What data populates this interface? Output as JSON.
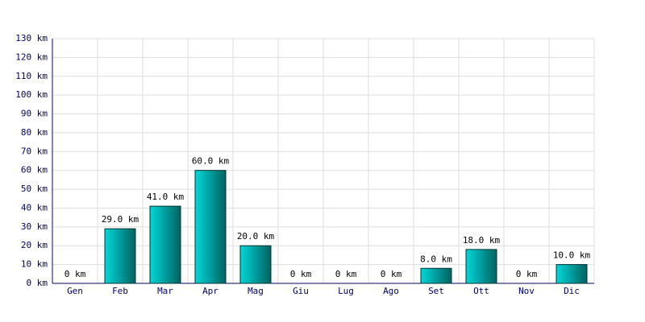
{
  "chart_data": {
    "type": "bar",
    "categories": [
      "Gen",
      "Feb",
      "Mar",
      "Apr",
      "Mag",
      "Giu",
      "Lug",
      "Ago",
      "Set",
      "Ott",
      "Nov",
      "Dic"
    ],
    "values": [
      0,
      29,
      41,
      60,
      20,
      0,
      0,
      0,
      8,
      18,
      0,
      10
    ],
    "value_labels": [
      "0 km",
      "29.0 km",
      "41.0 km",
      "60.0 km",
      "20.0 km",
      "0 km",
      "0 km",
      "0 km",
      "8.0 km",
      "18.0 km",
      "0 km",
      "10.0 km"
    ],
    "color": "#00d8d8",
    "ylim": [
      0,
      130
    ],
    "yticks": [
      {
        "value": 0,
        "label": "0 km"
      },
      {
        "value": 10,
        "label": "10 km"
      },
      {
        "value": 20,
        "label": "20 km"
      },
      {
        "value": 30,
        "label": "30 km"
      },
      {
        "value": 40,
        "label": "40 km"
      },
      {
        "value": 50,
        "label": "50 km"
      },
      {
        "value": 60,
        "label": "60 km"
      },
      {
        "value": 70,
        "label": "70 km"
      },
      {
        "value": 80,
        "label": "80 km"
      },
      {
        "value": 90,
        "label": "90 km"
      },
      {
        "value": 100,
        "label": "100 km"
      },
      {
        "value": 110,
        "label": "110 km"
      },
      {
        "value": 120,
        "label": "120 km"
      },
      {
        "value": 130,
        "label": "130 km"
      }
    ],
    "grid": true
  }
}
